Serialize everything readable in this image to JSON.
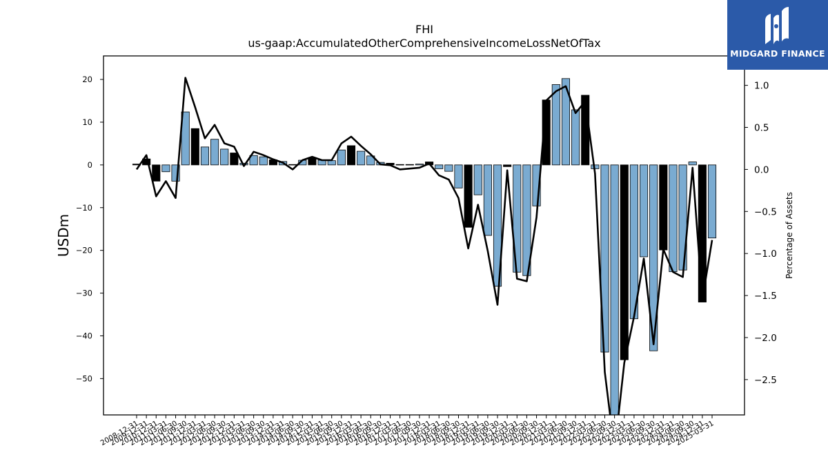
{
  "chart_data": {
    "type": "bar",
    "title": "FHI",
    "subtitle": "us-gaap:AccumulatedOtherComprehensiveIncomeLossNetOfTax",
    "ylabel": "USDm",
    "y2label": "Percentage of Assets",
    "ylim": [
      -58.5,
      25.5
    ],
    "y2lim": [
      -2.92,
      1.35
    ],
    "yticks": [
      20,
      10,
      0,
      -10,
      -20,
      -30,
      -40,
      -50
    ],
    "y2ticks": [
      1.0,
      0.5,
      0.0,
      -0.5,
      -1.0,
      -1.5,
      -2.0,
      -2.5
    ],
    "y2ticklabels": [
      "1.0",
      "0.5",
      "0.0",
      "−0.5",
      "−1.0",
      "−1.5",
      "−2.0",
      "−2.5"
    ],
    "grid": false,
    "colors": {
      "bar_light": "#7aabd1",
      "bar_dark": "#000000",
      "line": "#000000"
    },
    "x_ticklabels": [
      "2008-12-31",
      "2009-12-31",
      "2010-12-31",
      "2011-03-31",
      "2011-06-30",
      "2011-09-30",
      "2011-12-31",
      "2012-03-31",
      "2012-06-30",
      "2012-09-30",
      "2012-12-31",
      "2013-03-31",
      "2013-06-30",
      "2013-09-30",
      "2013-12-31",
      "2014-03-31",
      "2014-06-30",
      "2014-09-30",
      "2014-12-31",
      "2015-03-31",
      "2015-06-30",
      "2015-09-30",
      "2015-12-31",
      "2016-03-31",
      "2016-06-30",
      "2016-09-30",
      "2016-12-31",
      "2017-03-31",
      "2017-06-30",
      "2017-09-30",
      "2017-12-31",
      "2018-03-31",
      "2018-06-30",
      "2018-09-30",
      "2018-12-31",
      "2019-03-31",
      "2019-06-30",
      "2019-09-30",
      "2019-12-31",
      "2020-03-31",
      "2020-06-30",
      "2020-09-30",
      "2020-12-31",
      "2021-03-31",
      "2021-06-30",
      "2021-09-30",
      "2021-12-31",
      "2022-03-31",
      "2022-06-30",
      "2022-09-30",
      "2022-12-31",
      "2023-03-31",
      "2023-06-30",
      "2023-09-30",
      "2023-12-31",
      "2024-03-31",
      "2024-06-30",
      "2024-09-30",
      "2024-12-31",
      "2025-03-31"
    ],
    "bars": [
      0.2,
      1.4,
      -3.8,
      -1.6,
      -3.8,
      12.4,
      8.5,
      4.2,
      6.0,
      3.7,
      2.8,
      0.4,
      2.2,
      1.9,
      1.2,
      0.8,
      0.1,
      1.1,
      1.6,
      1.1,
      1.0,
      3.5,
      4.5,
      3.2,
      2.1,
      0.6,
      0.4,
      0.1,
      0.1,
      0.2,
      0.7,
      -0.9,
      -1.5,
      -5.4,
      -14.6,
      -7.0,
      -16.5,
      -28.4,
      -0.4,
      -25.1,
      -25.9,
      -9.6,
      15.2,
      18.8,
      20.2,
      12.9,
      16.3,
      -0.9,
      -43.8,
      -63.0,
      -45.6,
      -36.0,
      -21.5,
      -43.5,
      -19.9,
      -25.0,
      -24.6,
      0.7,
      -32.1,
      -17.1
    ],
    "bar_dark": [
      true,
      true,
      true,
      false,
      false,
      false,
      true,
      false,
      false,
      false,
      true,
      false,
      false,
      false,
      true,
      false,
      false,
      false,
      true,
      false,
      false,
      false,
      true,
      false,
      false,
      false,
      true,
      false,
      false,
      false,
      true,
      false,
      false,
      false,
      true,
      false,
      false,
      false,
      true,
      false,
      false,
      false,
      true,
      false,
      false,
      false,
      true,
      false,
      false,
      false,
      true,
      false,
      false,
      false,
      true,
      false,
      false,
      false,
      true,
      false
    ],
    "line_pct": [
      0.0,
      0.17,
      -0.32,
      -0.14,
      -0.34,
      1.09,
      0.74,
      0.37,
      0.53,
      0.31,
      0.27,
      0.04,
      0.21,
      0.17,
      0.12,
      0.08,
      0.0,
      0.11,
      0.15,
      0.11,
      0.11,
      0.31,
      0.39,
      0.28,
      0.18,
      0.06,
      0.05,
      0.0,
      0.01,
      0.02,
      0.07,
      -0.07,
      -0.12,
      -0.34,
      -0.94,
      -0.42,
      -0.97,
      -1.61,
      -0.01,
      -1.3,
      -1.33,
      -0.57,
      0.82,
      0.93,
      0.99,
      0.67,
      0.81,
      -0.05,
      -2.41,
      -3.35,
      -2.3,
      -1.75,
      -1.06,
      -2.08,
      -0.95,
      -1.22,
      -1.28,
      0.02,
      -1.55,
      -0.84
    ]
  }
}
